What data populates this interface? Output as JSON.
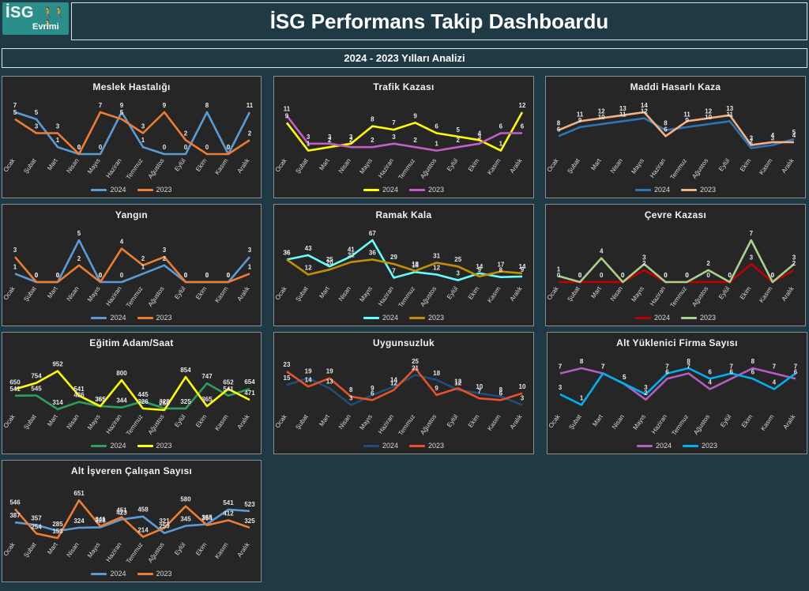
{
  "header": {
    "logo_text": "İSG",
    "logo_sub": "Evrimi",
    "title": "İSG Performans Takip Dashboardu",
    "subtitle": "2024 - 2023 Yılları Analizi"
  },
  "months": [
    "Ocak",
    "Şubat",
    "Mart",
    "Nisan",
    "Mayıs",
    "Haziran",
    "Temmuz",
    "Ağustos",
    "Eylül",
    "Ekim",
    "Kasım",
    "Aralık"
  ],
  "chart_data": [
    {
      "id": "meslek",
      "type": "line",
      "title": "Meslek Hastalığı",
      "ylim": [
        0,
        6
      ],
      "series": [
        {
          "name": "2024",
          "color": "#5b9bd5",
          "values": [
            7,
            5,
            1,
            0,
            0,
            9,
            1,
            0,
            0,
            8,
            0,
            11
          ]
        },
        {
          "name": "2023",
          "color": "#ed7d31",
          "values": [
            5,
            3,
            3,
            0,
            7,
            5,
            3,
            9,
            2,
            0,
            0,
            2
          ]
        }
      ]
    },
    {
      "id": "trafik",
      "type": "line",
      "title": "Trafik Kazası",
      "ylim": [
        0,
        12
      ],
      "series": [
        {
          "name": "2024",
          "color": "#ffff00",
          "values": [
            9,
            1,
            2,
            3,
            8,
            7,
            9,
            6,
            5,
            4,
            1,
            12
          ]
        },
        {
          "name": "2023",
          "color": "#c55ec4",
          "values": [
            11,
            3,
            3,
            2,
            2,
            3,
            2,
            1,
            2,
            3,
            6,
            6
          ]
        }
      ]
    },
    {
      "id": "maddi",
      "type": "line",
      "title": "Maddi Hasarlı Kaza",
      "ylim": [
        0,
        14
      ],
      "series": [
        {
          "name": "2024",
          "color": "#2e75b6",
          "values": [
            6,
            9,
            10,
            11,
            12,
            8,
            9,
            10,
            11,
            2,
            3,
            5
          ]
        },
        {
          "name": "2023",
          "color": "#f4b183",
          "values": [
            8,
            11,
            12,
            13,
            14,
            6,
            11,
            12,
            13,
            3,
            4,
            4
          ]
        }
      ]
    },
    {
      "id": "yangin",
      "type": "line",
      "title": "Yangın",
      "ylim": [
        0,
        5
      ],
      "series": [
        {
          "name": "2024",
          "color": "#5b9bd5",
          "values": [
            1,
            0,
            0,
            5,
            0,
            0,
            1,
            2,
            0,
            0,
            0,
            3
          ]
        },
        {
          "name": "2023",
          "color": "#ed7d31",
          "values": [
            3,
            0,
            0,
            2,
            0,
            4,
            2,
            3,
            0,
            0,
            0,
            1
          ]
        }
      ]
    },
    {
      "id": "ramak",
      "type": "line",
      "title": "Ramak Kala",
      "ylim": [
        0,
        67
      ],
      "series": [
        {
          "name": "2024",
          "color": "#66ffff",
          "values": [
            36,
            43,
            25,
            41,
            67,
            7,
            16,
            12,
            3,
            14,
            8,
            9
          ]
        },
        {
          "name": "2023",
          "color": "#bf9000",
          "values": [
            36,
            12,
            20,
            32,
            36,
            29,
            18,
            31,
            25,
            9,
            17,
            14
          ]
        }
      ]
    },
    {
      "id": "cevre",
      "type": "line",
      "title": "Çevre Kazası",
      "ylim": [
        0,
        7
      ],
      "series": [
        {
          "name": "2024",
          "color": "#c00000",
          "values": [
            0,
            0,
            0,
            0,
            2,
            0,
            0,
            0,
            0,
            3,
            0,
            2
          ]
        },
        {
          "name": "2023",
          "color": "#a9d18e",
          "values": [
            1,
            0,
            4,
            0,
            3,
            0,
            0,
            2,
            0,
            7,
            0,
            3
          ]
        }
      ]
    },
    {
      "id": "egitim",
      "type": "line",
      "title": "Eğitim Adam/Saat",
      "ylim": [
        300,
        1000
      ],
      "series": [
        {
          "name": "2024",
          "color": "#2e9e5e",
          "values": [
            541,
            545,
            314,
            436,
            365,
            344,
            445,
            328,
            325,
            747,
            541,
            654
          ]
        },
        {
          "name": "2023",
          "color": "#ffff00",
          "values": [
            650,
            754,
            952,
            541,
            365,
            800,
            326,
            258,
            854,
            365,
            652,
            471
          ]
        }
      ]
    },
    {
      "id": "uygunsuz",
      "type": "line",
      "title": "Uygunsuzluk",
      "ylim": [
        0,
        25
      ],
      "series": [
        {
          "name": "2024",
          "color": "#1f4e79",
          "values": [
            15,
            19,
            13,
            3,
            9,
            14,
            21,
            18,
            12,
            10,
            8,
            3
          ]
        },
        {
          "name": "2023",
          "color": "#e8512a",
          "values": [
            23,
            14,
            19,
            8,
            6,
            12,
            25,
            9,
            13,
            7,
            6,
            10
          ]
        }
      ]
    },
    {
      "id": "altyuk",
      "type": "line",
      "title": "Alt Yüklenici Firma Sayısı",
      "ylim": [
        0,
        8
      ],
      "series": [
        {
          "name": "2024",
          "color": "#b35fc2",
          "values": [
            7,
            8,
            7,
            5,
            2,
            6,
            7,
            4,
            6,
            8,
            7,
            6
          ]
        },
        {
          "name": "2023",
          "color": "#00b0f0",
          "values": [
            3,
            1,
            7,
            5,
            3,
            7,
            8,
            6,
            7,
            6,
            4,
            7
          ]
        }
      ]
    },
    {
      "id": "altisv",
      "type": "line",
      "title": "Alt İşveren Çalışan Sayısı",
      "ylim": [
        200,
        700
      ],
      "series": [
        {
          "name": "2024",
          "color": "#5b9bd5",
          "values": [
            387,
            357,
            285,
            324,
            328,
            423,
            458,
            259,
            345,
            365,
            541,
            523
          ]
        },
        {
          "name": "2023",
          "color": "#ed7d31",
          "values": [
            546,
            254,
            153,
            651,
            341,
            451,
            214,
            321,
            580,
            354,
            412,
            325
          ]
        }
      ]
    }
  ]
}
